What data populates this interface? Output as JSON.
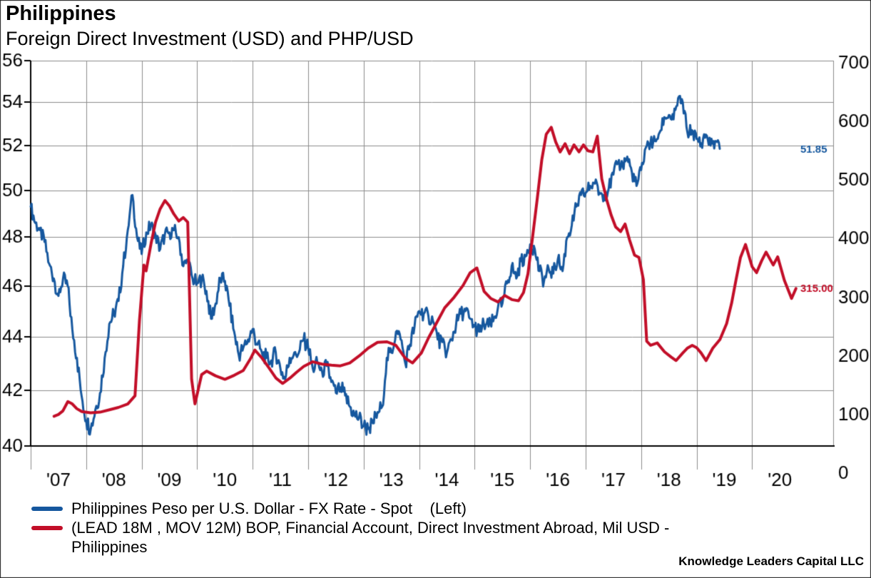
{
  "header": {
    "title": "Philippines",
    "subtitle": "Foreign Direct Investment (USD) and PHP/USD"
  },
  "footer": {
    "attribution": "Knowledge Leaders Capital LLC"
  },
  "colors": {
    "blue_series": "#15579E",
    "red_series": "#C20E28",
    "gridline": "#8C8C8C",
    "axis": "#000000",
    "background": "#FFFFFF"
  },
  "chart_data": {
    "type": "line",
    "title": "Philippines",
    "subtitle": "Foreign Direct Investment (USD) and PHP/USD",
    "x_axis": {
      "tick_labels": [
        "'07",
        "'08",
        "'09",
        "'10",
        "'11",
        "'12",
        "'13",
        "'14",
        "'15",
        "'16",
        "'17",
        "'18",
        "'19",
        "'20"
      ],
      "start_year": 2007,
      "end_year": 2021.45,
      "gridlines": true
    },
    "left_axis": {
      "scale": "log",
      "min": 40,
      "max": 56,
      "tick_values": [
        56,
        54,
        52,
        50,
        48,
        46,
        44,
        42,
        40
      ],
      "tick_labels": [
        "56",
        "54",
        "52",
        "50",
        "48",
        "46",
        "44",
        "42",
        "40"
      ]
    },
    "right_axis": {
      "scale": "linear",
      "min": 0,
      "max": 700,
      "tick_values": [
        700,
        600,
        500,
        400,
        300,
        200,
        100,
        0
      ],
      "tick_labels": [
        "700",
        "600",
        "500",
        "400",
        "300",
        "200",
        "100",
        "0"
      ]
    },
    "series": [
      {
        "name": "Philippines Peso per U.S. Dollar - FX Rate - Spot",
        "legend_label": "Philippines Peso per U.S. Dollar - FX Rate - Spot    (Left)",
        "axis": "left",
        "color": "#15579E",
        "style": "noisy-daily",
        "line_width": 3,
        "last_value_label": "51.85",
        "x_start": 2007.0,
        "x_step_years": 0.0833333,
        "values": [
          49.3,
          48.6,
          48.3,
          47.8,
          46.9,
          46.3,
          45.6,
          46.3,
          46.0,
          44.3,
          43.2,
          41.8,
          40.9,
          40.6,
          41.3,
          41.9,
          43.2,
          44.5,
          44.9,
          45.4,
          46.8,
          48.3,
          49.8,
          48.0,
          47.3,
          48.2,
          48.5,
          48.1,
          47.5,
          48.1,
          48.2,
          48.3,
          48.0,
          46.8,
          47.0,
          46.3,
          46.1,
          46.3,
          45.8,
          44.7,
          45.3,
          46.3,
          46.2,
          45.2,
          44.2,
          43.3,
          43.6,
          43.9,
          44.3,
          43.7,
          43.4,
          43.2,
          43.1,
          43.4,
          42.8,
          42.4,
          43.2,
          43.4,
          43.4,
          43.9,
          43.6,
          42.8,
          43.0,
          42.7,
          42.9,
          42.3,
          41.9,
          42.1,
          41.8,
          41.4,
          41.1,
          41.0,
          40.7,
          40.6,
          40.8,
          41.2,
          41.4,
          43.2,
          43.4,
          44.2,
          43.9,
          43.0,
          43.7,
          44.4,
          45.0,
          44.9,
          44.8,
          44.6,
          43.9,
          43.8,
          43.4,
          43.9,
          44.5,
          44.9,
          45.0,
          44.7,
          44.4,
          44.2,
          44.5,
          44.4,
          44.6,
          45.1,
          45.3,
          46.1,
          46.8,
          46.3,
          47.0,
          47.2,
          47.7,
          47.5,
          46.6,
          46.2,
          46.7,
          46.5,
          47.1,
          46.6,
          48.0,
          48.5,
          49.3,
          49.8,
          49.9,
          50.2,
          50.3,
          49.9,
          49.8,
          50.1,
          50.7,
          51.2,
          51.1,
          51.5,
          50.8,
          50.2,
          50.9,
          51.9,
          52.1,
          52.2,
          52.6,
          53.3,
          53.4,
          53.2,
          54.2,
          54.0,
          52.6,
          52.7,
          52.3,
          52.1,
          52.5,
          52.0,
          52.2,
          51.85
        ]
      },
      {
        "name": "(LEAD 18M , MOV 12M) BOP, Financial Account, Direct Investment Abroad, Mil USD - Philippines",
        "legend_label": "(LEAD 18M , MOV 12M) BOP, Financial Account, Direct Investment Abroad, Mil USD -\nPhilippines",
        "axis": "right",
        "color": "#C20E28",
        "style": "smooth-monthly",
        "line_width": 4,
        "last_value_label": "315.00",
        "points": [
          [
            2007.42,
            97
          ],
          [
            2007.5,
            100
          ],
          [
            2007.58,
            106
          ],
          [
            2007.67,
            122
          ],
          [
            2007.75,
            118
          ],
          [
            2007.83,
            110
          ],
          [
            2007.92,
            105
          ],
          [
            2008.08,
            103
          ],
          [
            2008.25,
            104
          ],
          [
            2008.42,
            108
          ],
          [
            2008.58,
            112
          ],
          [
            2008.75,
            118
          ],
          [
            2008.88,
            132
          ],
          [
            2008.96,
            260
          ],
          [
            2009.04,
            355
          ],
          [
            2009.08,
            345
          ],
          [
            2009.17,
            392
          ],
          [
            2009.25,
            428
          ],
          [
            2009.33,
            450
          ],
          [
            2009.42,
            465
          ],
          [
            2009.5,
            456
          ],
          [
            2009.58,
            442
          ],
          [
            2009.67,
            430
          ],
          [
            2009.75,
            436
          ],
          [
            2009.83,
            428
          ],
          [
            2009.9,
            160
          ],
          [
            2009.96,
            118
          ],
          [
            2010.08,
            168
          ],
          [
            2010.17,
            174
          ],
          [
            2010.33,
            166
          ],
          [
            2010.5,
            160
          ],
          [
            2010.67,
            167
          ],
          [
            2010.83,
            175
          ],
          [
            2010.96,
            195
          ],
          [
            2011.04,
            210
          ],
          [
            2011.17,
            196
          ],
          [
            2011.29,
            180
          ],
          [
            2011.42,
            162
          ],
          [
            2011.54,
            153
          ],
          [
            2011.67,
            162
          ],
          [
            2011.79,
            172
          ],
          [
            2011.92,
            182
          ],
          [
            2012.08,
            190
          ],
          [
            2012.25,
            186
          ],
          [
            2012.42,
            184
          ],
          [
            2012.58,
            183
          ],
          [
            2012.75,
            188
          ],
          [
            2012.92,
            200
          ],
          [
            2013.08,
            213
          ],
          [
            2013.25,
            223
          ],
          [
            2013.42,
            224
          ],
          [
            2013.58,
            218
          ],
          [
            2013.75,
            196
          ],
          [
            2013.88,
            188
          ],
          [
            2014.04,
            205
          ],
          [
            2014.17,
            231
          ],
          [
            2014.29,
            252
          ],
          [
            2014.46,
            282
          ],
          [
            2014.63,
            300
          ],
          [
            2014.79,
            320
          ],
          [
            2014.92,
            342
          ],
          [
            2015.04,
            350
          ],
          [
            2015.17,
            310
          ],
          [
            2015.29,
            298
          ],
          [
            2015.42,
            292
          ],
          [
            2015.54,
            303
          ],
          [
            2015.67,
            296
          ],
          [
            2015.79,
            294
          ],
          [
            2015.88,
            308
          ],
          [
            2015.96,
            340
          ],
          [
            2016.04,
            400
          ],
          [
            2016.13,
            470
          ],
          [
            2016.21,
            535
          ],
          [
            2016.29,
            578
          ],
          [
            2016.38,
            590
          ],
          [
            2016.46,
            565
          ],
          [
            2016.54,
            548
          ],
          [
            2016.63,
            562
          ],
          [
            2016.71,
            545
          ],
          [
            2016.79,
            560
          ],
          [
            2016.88,
            548
          ],
          [
            2016.96,
            560
          ],
          [
            2017.04,
            550
          ],
          [
            2017.13,
            548
          ],
          [
            2017.21,
            575
          ],
          [
            2017.29,
            502
          ],
          [
            2017.38,
            466
          ],
          [
            2017.46,
            440
          ],
          [
            2017.54,
            420
          ],
          [
            2017.63,
            412
          ],
          [
            2017.71,
            425
          ],
          [
            2017.79,
            398
          ],
          [
            2017.88,
            372
          ],
          [
            2017.96,
            368
          ],
          [
            2018.04,
            330
          ],
          [
            2018.1,
            225
          ],
          [
            2018.17,
            218
          ],
          [
            2018.29,
            222
          ],
          [
            2018.42,
            207
          ],
          [
            2018.54,
            198
          ],
          [
            2018.63,
            192
          ],
          [
            2018.75,
            205
          ],
          [
            2018.83,
            213
          ],
          [
            2018.92,
            218
          ],
          [
            2019.0,
            214
          ],
          [
            2019.08,
            205
          ],
          [
            2019.17,
            192
          ],
          [
            2019.29,
            213
          ],
          [
            2019.42,
            228
          ],
          [
            2019.54,
            255
          ],
          [
            2019.63,
            290
          ],
          [
            2019.71,
            330
          ],
          [
            2019.79,
            368
          ],
          [
            2019.88,
            390
          ],
          [
            2020.0,
            352
          ],
          [
            2020.08,
            342
          ],
          [
            2020.17,
            362
          ],
          [
            2020.25,
            377
          ],
          [
            2020.38,
            355
          ],
          [
            2020.46,
            369
          ],
          [
            2020.58,
            329
          ],
          [
            2020.71,
            298
          ],
          [
            2020.79,
            315
          ]
        ]
      }
    ],
    "legend_position": "bottom-left",
    "grid": true
  }
}
